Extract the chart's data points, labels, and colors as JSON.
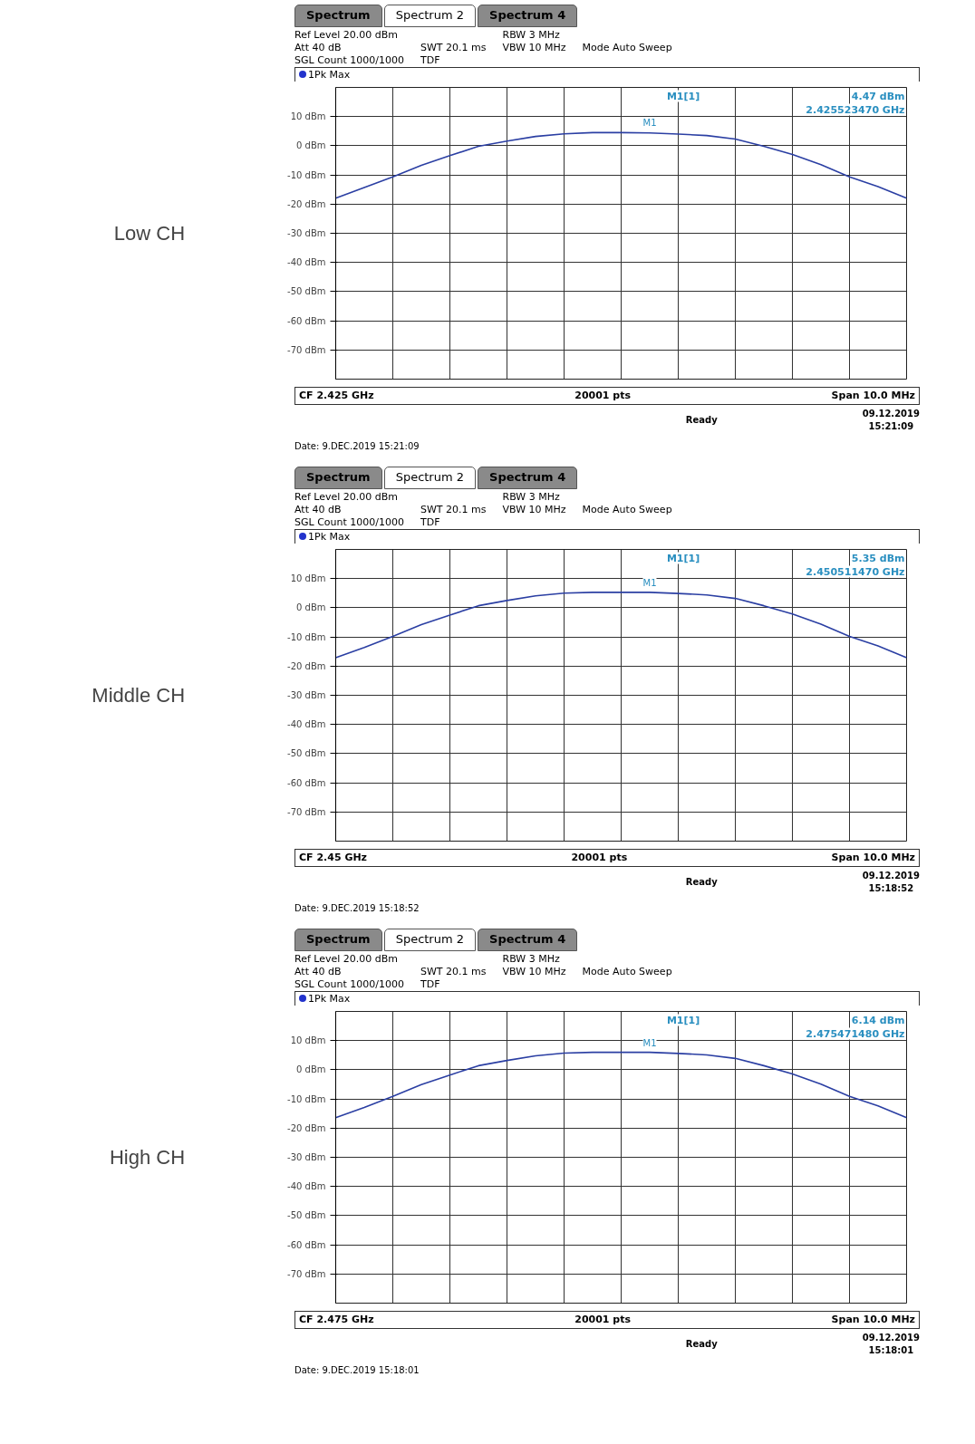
{
  "chart_data": [
    {
      "type": "line",
      "title": "Low CH",
      "categories": [
        null,
        null,
        null,
        null,
        null,
        null,
        null,
        null,
        null,
        null,
        null,
        null,
        null,
        null,
        null,
        null,
        null,
        null,
        null,
        null,
        null
      ],
      "series": [
        {
          "color": "#2b3fa3",
          "values": [
            -18,
            -14.3,
            -10.7,
            -6.7,
            -3.4,
            -0.2,
            1.6,
            3.2,
            4.1,
            4.5,
            4.5,
            4.4,
            4.0,
            3.5,
            2.3,
            -0.2,
            -3,
            -6.5,
            -10.7,
            -14,
            -18
          ]
        }
      ],
      "ylim": [
        -80,
        20
      ],
      "yticks": [
        {
          "value": 10,
          "label": "10 dBm"
        },
        {
          "value": 0,
          "label": "0 dBm"
        },
        {
          "value": -10,
          "label": "-10 dBm"
        },
        {
          "value": -20,
          "label": "-20 dBm"
        },
        {
          "value": -30,
          "label": "-30 dBm"
        },
        {
          "value": -40,
          "label": "-40 dBm"
        },
        {
          "value": -50,
          "label": "-50 dBm"
        },
        {
          "value": -60,
          "label": "-60 dBm"
        },
        {
          "value": -70,
          "label": "-70 dBm"
        }
      ],
      "grid": true,
      "tick_labels": "y",
      "annotations": [
        "Spectrum",
        "Spectrum 2",
        "Spectrum 4",
        "Ref Level 20.00 dBm",
        "Att 40 dB",
        "SGL Count 1000/1000",
        "SWT 20.1 ms",
        "TDF",
        "RBW 3 MHz",
        "VBW 10 MHz",
        "Mode Auto Sweep",
        "1Pk Max",
        "M1[1]",
        "4.47 dBm",
        "2.425523470 GHz",
        "M1",
        "CF 2.425 GHz",
        "20001 pts",
        "Span 10.0 MHz",
        "Ready",
        "09.12.2019",
        "15:21:09",
        "Date: 9.DEC.2019 15:21:09"
      ]
    },
    {
      "type": "line",
      "title": "Middle CH",
      "categories": [
        null,
        null,
        null,
        null,
        null,
        null,
        null,
        null,
        null,
        null,
        null,
        null,
        null,
        null,
        null,
        null,
        null,
        null,
        null,
        null,
        null
      ],
      "series": [
        {
          "color": "#2b3fa3",
          "values": [
            -17.1,
            -13.6,
            -9.8,
            -5.8,
            -2.5,
            0.7,
            2.5,
            4.1,
            5.0,
            5.3,
            5.3,
            5.3,
            4.9,
            4.4,
            3.2,
            0.7,
            -2.1,
            -5.6,
            -9.8,
            -13.1,
            -17.1
          ]
        }
      ],
      "ylim": [
        -80,
        20
      ],
      "yticks": [
        {
          "value": 10,
          "label": "10 dBm"
        },
        {
          "value": 0,
          "label": "0 dBm"
        },
        {
          "value": -10,
          "label": "-10 dBm"
        },
        {
          "value": -20,
          "label": "-20 dBm"
        },
        {
          "value": -30,
          "label": "-30 dBm"
        },
        {
          "value": -40,
          "label": "-40 dBm"
        },
        {
          "value": -50,
          "label": "-50 dBm"
        },
        {
          "value": -60,
          "label": "-60 dBm"
        },
        {
          "value": -70,
          "label": "-70 dBm"
        }
      ],
      "grid": true,
      "tick_labels": "y",
      "annotations": [
        "Spectrum",
        "Spectrum 2",
        "Spectrum 4",
        "Ref Level 20.00 dBm",
        "Att 40 dB",
        "SGL Count 1000/1000",
        "SWT 20.1 ms",
        "TDF",
        "RBW 3 MHz",
        "VBW 10 MHz",
        "Mode Auto Sweep",
        "1Pk Max",
        "M1[1]",
        "5.35 dBm",
        "2.450511470 GHz",
        "M1",
        "CF 2.45 GHz",
        "20001 pts",
        "Span 10.0 MHz",
        "Ready",
        "09.12.2019",
        "15:18:52",
        "Date: 9.DEC.2019 15:18:52"
      ]
    },
    {
      "type": "line",
      "title": "High CH",
      "categories": [
        null,
        null,
        null,
        null,
        null,
        null,
        null,
        null,
        null,
        null,
        null,
        null,
        null,
        null,
        null,
        null,
        null,
        null,
        null,
        null,
        null
      ],
      "series": [
        {
          "color": "#2b3fa3",
          "values": [
            -16.4,
            -12.9,
            -9.1,
            -5.1,
            -1.8,
            1.4,
            3.2,
            4.8,
            5.7,
            6.0,
            6.0,
            6.0,
            5.6,
            5.1,
            3.9,
            1.4,
            -1.4,
            -4.9,
            -9.1,
            -12.4,
            -16.4
          ]
        }
      ],
      "ylim": [
        -80,
        20
      ],
      "yticks": [
        {
          "value": 10,
          "label": "10 dBm"
        },
        {
          "value": 0,
          "label": "0 dBm"
        },
        {
          "value": -10,
          "label": "-10 dBm"
        },
        {
          "value": -20,
          "label": "-20 dBm"
        },
        {
          "value": -30,
          "label": "-30 dBm"
        },
        {
          "value": -40,
          "label": "-40 dBm"
        },
        {
          "value": -50,
          "label": "-50 dBm"
        },
        {
          "value": -60,
          "label": "-60 dBm"
        },
        {
          "value": -70,
          "label": "-70 dBm"
        }
      ],
      "grid": true,
      "tick_labels": "y",
      "annotations": [
        "Spectrum",
        "Spectrum 2",
        "Spectrum 4",
        "Ref Level 20.00 dBm",
        "Att 40 dB",
        "SGL Count 1000/1000",
        "SWT 20.1 ms",
        "TDF",
        "RBW 3 MHz",
        "VBW 10 MHz",
        "Mode Auto Sweep",
        "1Pk Max",
        "M1[1]",
        "6.14 dBm",
        "2.475471480 GHz",
        "M1",
        "CF 2.475 GHz",
        "20001 pts",
        "Span 10.0 MHz",
        "Ready",
        "09.12.2019",
        "15:18:01",
        "Date: 9.DEC.2019 15:18:01"
      ]
    }
  ]
}
